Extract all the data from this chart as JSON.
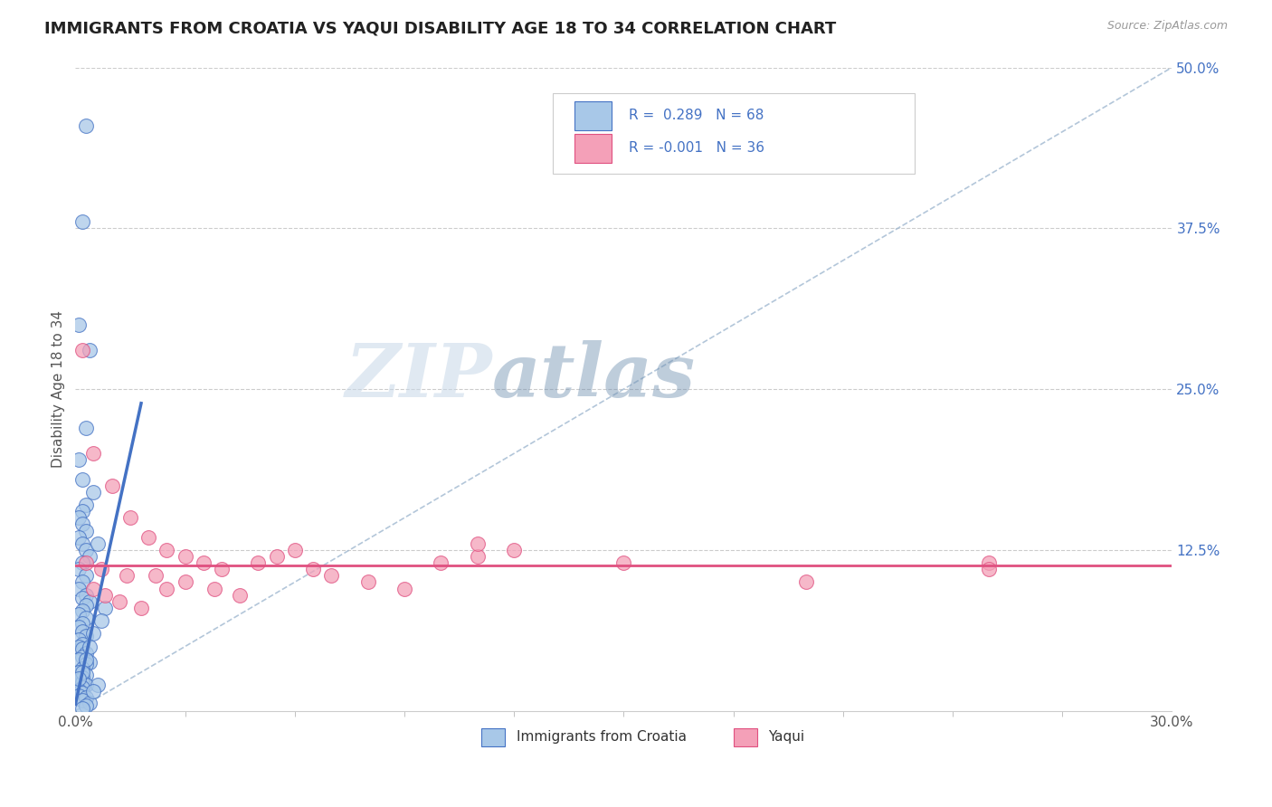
{
  "title": "IMMIGRANTS FROM CROATIA VS YAQUI DISABILITY AGE 18 TO 34 CORRELATION CHART",
  "source_text": "Source: ZipAtlas.com",
  "ylabel": "Disability Age 18 to 34",
  "xlim": [
    0.0,
    0.3
  ],
  "ylim": [
    0.0,
    0.5
  ],
  "ytick_labels": [
    "12.5%",
    "25.0%",
    "37.5%",
    "50.0%"
  ],
  "ytick_values": [
    0.125,
    0.25,
    0.375,
    0.5
  ],
  "xtick_values": [
    0.0,
    0.3
  ],
  "xtick_labels": [
    "0.0%",
    "30.0%"
  ],
  "r_croatia": 0.289,
  "n_croatia": 68,
  "r_yaqui": -0.001,
  "n_yaqui": 36,
  "color_croatia": "#a8c8e8",
  "color_yaqui": "#f4a0b8",
  "trendline_croatia": "#4472c4",
  "trendline_yaqui": "#e05080",
  "diag_color": "#a0b8d0",
  "legend_label_croatia": "Immigrants from Croatia",
  "legend_label_yaqui": "Yaqui",
  "watermark_zip": "ZIP",
  "watermark_atlas": "atlas",
  "background_color": "#ffffff",
  "grid_color": "#cccccc",
  "blue_scatter_x": [
    0.003,
    0.002,
    0.001,
    0.004,
    0.003,
    0.001,
    0.002,
    0.005,
    0.003,
    0.002,
    0.001,
    0.002,
    0.003,
    0.001,
    0.002,
    0.003,
    0.004,
    0.002,
    0.001,
    0.003,
    0.002,
    0.001,
    0.003,
    0.002,
    0.004,
    0.003,
    0.002,
    0.001,
    0.003,
    0.002,
    0.001,
    0.002,
    0.003,
    0.001,
    0.002,
    0.001,
    0.002,
    0.003,
    0.002,
    0.001,
    0.004,
    0.003,
    0.002,
    0.001,
    0.003,
    0.002,
    0.001,
    0.002,
    0.003,
    0.002,
    0.001,
    0.002,
    0.001,
    0.003,
    0.002,
    0.004,
    0.003,
    0.002,
    0.006,
    0.005,
    0.004,
    0.003,
    0.002,
    0.001,
    0.008,
    0.007,
    0.006,
    0.005
  ],
  "blue_scatter_y": [
    0.455,
    0.38,
    0.3,
    0.28,
    0.22,
    0.195,
    0.18,
    0.17,
    0.16,
    0.155,
    0.15,
    0.145,
    0.14,
    0.135,
    0.13,
    0.125,
    0.12,
    0.115,
    0.11,
    0.105,
    0.1,
    0.095,
    0.09,
    0.088,
    0.085,
    0.082,
    0.078,
    0.075,
    0.072,
    0.068,
    0.065,
    0.062,
    0.058,
    0.055,
    0.052,
    0.05,
    0.048,
    0.045,
    0.042,
    0.04,
    0.038,
    0.036,
    0.033,
    0.03,
    0.028,
    0.026,
    0.024,
    0.022,
    0.02,
    0.018,
    0.016,
    0.014,
    0.012,
    0.01,
    0.008,
    0.006,
    0.004,
    0.002,
    0.13,
    0.06,
    0.05,
    0.04,
    0.03,
    0.025,
    0.08,
    0.07,
    0.02,
    0.015
  ],
  "pink_scatter_x": [
    0.002,
    0.005,
    0.01,
    0.015,
    0.02,
    0.025,
    0.03,
    0.035,
    0.04,
    0.05,
    0.055,
    0.06,
    0.065,
    0.07,
    0.08,
    0.09,
    0.1,
    0.11,
    0.12,
    0.15,
    0.2,
    0.25,
    0.005,
    0.008,
    0.012,
    0.018,
    0.022,
    0.03,
    0.038,
    0.045,
    0.003,
    0.007,
    0.014,
    0.025,
    0.11,
    0.25
  ],
  "pink_scatter_y": [
    0.28,
    0.2,
    0.175,
    0.15,
    0.135,
    0.125,
    0.12,
    0.115,
    0.11,
    0.115,
    0.12,
    0.125,
    0.11,
    0.105,
    0.1,
    0.095,
    0.115,
    0.12,
    0.125,
    0.115,
    0.1,
    0.115,
    0.095,
    0.09,
    0.085,
    0.08,
    0.105,
    0.1,
    0.095,
    0.09,
    0.115,
    0.11,
    0.105,
    0.095,
    0.13,
    0.11
  ],
  "blue_trendline_x": [
    0.0,
    0.018
  ],
  "blue_trendline_y_start": 0.005,
  "blue_trendline_slope": 13.0,
  "pink_trendline_y": 0.113
}
